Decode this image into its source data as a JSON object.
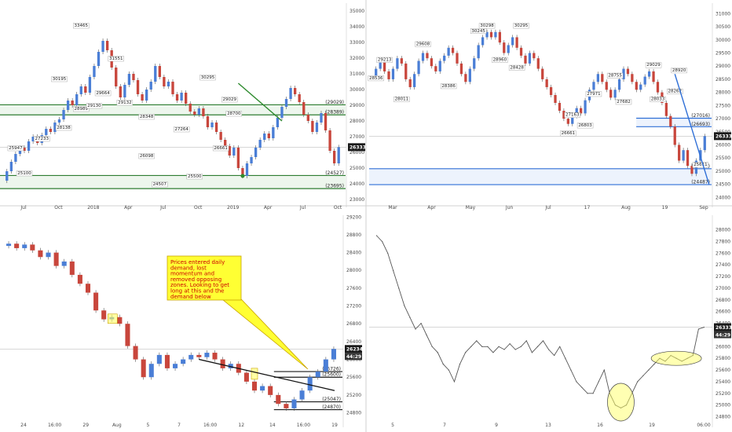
{
  "colors": {
    "up": "#4a7ed6",
    "down": "#c8463c",
    "zone_blue": "#2f6fd6",
    "zone_green": "#2e7d32",
    "trend_blue": "#2f6fd6",
    "trend_green": "#2e8b2e",
    "note_fill": "#ffff33",
    "note_border": "#c9a400",
    "circle_fill": "#ffff66",
    "badge_bg": "#1a1a1a"
  },
  "chart_data": [
    {
      "id": "weekly",
      "type": "candlestick",
      "ylim": [
        22800,
        35500
      ],
      "yticks": [
        "35000",
        "34000",
        "33000",
        "32000",
        "31000",
        "30000",
        "29000",
        "28000",
        "27000",
        "26000",
        "25000",
        "24000",
        "23000"
      ],
      "xticks": [
        "Jul",
        "Oct",
        "2018",
        "Apr",
        "Jul",
        "Oct",
        "2019",
        "Apr",
        "Jul",
        "Oct"
      ],
      "current_price": "26333",
      "candles": [
        [
          24200,
          24800
        ],
        [
          24800,
          25400
        ],
        [
          25400,
          25900
        ],
        [
          25900,
          26300
        ],
        [
          26300,
          26100
        ],
        [
          26100,
          26700
        ],
        [
          26700,
          27000
        ],
        [
          27000,
          26600
        ],
        [
          26600,
          27100
        ],
        [
          27100,
          27500
        ],
        [
          27500,
          27300
        ],
        [
          27300,
          27900
        ],
        [
          27900,
          28100
        ],
        [
          28100,
          28700
        ],
        [
          28700,
          29300
        ],
        [
          29300,
          29000
        ],
        [
          29000,
          29700
        ],
        [
          29700,
          30200
        ],
        [
          30200,
          29800
        ],
        [
          29800,
          30800
        ],
        [
          30800,
          31500
        ],
        [
          31500,
          32400
        ],
        [
          32400,
          33100
        ],
        [
          33100,
          32500
        ],
        [
          32500,
          31400
        ],
        [
          31400,
          30200
        ],
        [
          30200,
          29500
        ],
        [
          29500,
          30300
        ],
        [
          30300,
          31000
        ],
        [
          31000,
          30600
        ],
        [
          30600,
          29700
        ],
        [
          29700,
          29300
        ],
        [
          29300,
          30000
        ],
        [
          30000,
          30500
        ],
        [
          30500,
          31500
        ],
        [
          31500,
          30800
        ],
        [
          30800,
          30200
        ],
        [
          30200,
          30500
        ],
        [
          30500,
          29700
        ],
        [
          29700,
          29300
        ],
        [
          29300,
          29800
        ],
        [
          29800,
          29100
        ],
        [
          29100,
          28600
        ],
        [
          28600,
          28400
        ],
        [
          28400,
          28800
        ],
        [
          28800,
          28300
        ],
        [
          28300,
          27600
        ],
        [
          27600,
          27900
        ],
        [
          27900,
          27300
        ],
        [
          27300,
          26800
        ],
        [
          26800,
          26400
        ],
        [
          26400,
          25800
        ],
        [
          25800,
          26300
        ],
        [
          26300,
          25000
        ],
        [
          25000,
          24500
        ],
        [
          24500,
          25300
        ],
        [
          25300,
          25700
        ],
        [
          25700,
          26300
        ],
        [
          26300,
          26800
        ],
        [
          26800,
          27200
        ],
        [
          27200,
          26900
        ],
        [
          26900,
          27600
        ],
        [
          27600,
          28200
        ],
        [
          28200,
          28900
        ],
        [
          28900,
          29400
        ],
        [
          29400,
          30100
        ],
        [
          30100,
          29700
        ],
        [
          29700,
          29200
        ],
        [
          29200,
          28400
        ],
        [
          28400,
          28000
        ],
        [
          28000,
          27300
        ],
        [
          27300,
          27900
        ],
        [
          27900,
          28500
        ],
        [
          28500,
          27400
        ],
        [
          27400,
          26100
        ],
        [
          26100,
          25300
        ],
        [
          25300,
          26333
        ]
      ],
      "labels": [
        {
          "text": "33465",
          "x": 17,
          "p": 34000
        },
        {
          "text": "31551",
          "x": 25,
          "p": 31900
        },
        {
          "text": "30195",
          "x": 12,
          "p": 30600
        },
        {
          "text": "29664",
          "x": 22,
          "p": 29700
        },
        {
          "text": "29132",
          "x": 27,
          "p": 29100
        },
        {
          "text": "28989",
          "x": 17,
          "p": 28700
        },
        {
          "text": "29130",
          "x": 20,
          "p": 28900
        },
        {
          "text": "28348",
          "x": 32,
          "p": 28200
        },
        {
          "text": "28138",
          "x": 13,
          "p": 27500
        },
        {
          "text": "27264",
          "x": 40,
          "p": 27400
        },
        {
          "text": "27233",
          "x": 8,
          "p": 26800
        },
        {
          "text": "25947",
          "x": 2,
          "p": 26200
        },
        {
          "text": "26098",
          "x": 32,
          "p": 25700
        },
        {
          "text": "25100",
          "x": 4,
          "p": 24600
        },
        {
          "text": "25500",
          "x": 43,
          "p": 24400
        },
        {
          "text": "24507",
          "x": 35,
          "p": 23900
        },
        {
          "text": "30295",
          "x": 46,
          "p": 30700
        },
        {
          "text": "29029",
          "x": 51,
          "p": 29300
        },
        {
          "text": "28700",
          "x": 52,
          "p": 28400
        },
        {
          "text": "26661",
          "x": 49,
          "p": 26200
        }
      ],
      "zones": [
        {
          "text": "(29029)",
          "top": 29029,
          "bottom": 28389,
          "color": "zone_green"
        },
        {
          "text": "(24527)",
          "top": 24527,
          "bottom": 23695,
          "color": "zone_green"
        }
      ],
      "zone_labels": [
        "(28389)",
        "(23695)"
      ]
    },
    {
      "id": "daily",
      "type": "candlestick",
      "ylim": [
        23800,
        31400
      ],
      "yticks": [
        "31000",
        "30500",
        "30000",
        "29500",
        "29000",
        "28500",
        "28000",
        "27500",
        "27000",
        "26500",
        "26000",
        "25500",
        "25000",
        "24500",
        "24000"
      ],
      "xticks": [
        "Mar",
        "Apr",
        "May",
        "Jun",
        "Jul",
        "17",
        "Aug",
        "19",
        "Sep"
      ],
      "current_price": "26333",
      "candles": [
        [
          28600,
          28900
        ],
        [
          28900,
          29200
        ],
        [
          29200,
          28800
        ],
        [
          28800,
          28500
        ],
        [
          28500,
          28900
        ],
        [
          28900,
          29300
        ],
        [
          29300,
          29100
        ],
        [
          29100,
          28500
        ],
        [
          28500,
          28200
        ],
        [
          28200,
          28700
        ],
        [
          28700,
          29200
        ],
        [
          29200,
          29500
        ],
        [
          29500,
          29300
        ],
        [
          29300,
          29000
        ],
        [
          29000,
          28800
        ],
        [
          28800,
          29200
        ],
        [
          29200,
          29400
        ],
        [
          29400,
          29700
        ],
        [
          29700,
          29500
        ],
        [
          29500,
          29100
        ],
        [
          29100,
          28700
        ],
        [
          28700,
          28400
        ],
        [
          28400,
          28900
        ],
        [
          28900,
          29300
        ],
        [
          29300,
          29800
        ],
        [
          29800,
          30100
        ],
        [
          30100,
          30300
        ],
        [
          30300,
          30100
        ],
        [
          30100,
          30300
        ],
        [
          30300,
          29900
        ],
        [
          29900,
          29500
        ],
        [
          29500,
          29800
        ],
        [
          29800,
          30100
        ],
        [
          30100,
          29700
        ],
        [
          29700,
          29400
        ],
        [
          29400,
          29100
        ],
        [
          29100,
          29500
        ],
        [
          29500,
          29300
        ],
        [
          29300,
          28900
        ],
        [
          28900,
          28500
        ],
        [
          28500,
          28200
        ],
        [
          28200,
          27900
        ],
        [
          27900,
          27600
        ],
        [
          27600,
          27300
        ],
        [
          27300,
          27000
        ],
        [
          27000,
          26800
        ],
        [
          26800,
          27100
        ],
        [
          27100,
          27400
        ],
        [
          27400,
          27200
        ],
        [
          27200,
          27700
        ],
        [
          27700,
          28100
        ],
        [
          28100,
          28400
        ],
        [
          28400,
          28700
        ],
        [
          28700,
          28400
        ],
        [
          28400,
          28100
        ],
        [
          28100,
          27800
        ],
        [
          27800,
          28100
        ],
        [
          28100,
          28500
        ],
        [
          28500,
          28900
        ],
        [
          28900,
          28700
        ],
        [
          28700,
          28400
        ],
        [
          28400,
          28100
        ],
        [
          28100,
          28300
        ],
        [
          28300,
          28600
        ],
        [
          28600,
          28800
        ],
        [
          28800,
          28400
        ],
        [
          28400,
          28000
        ],
        [
          28000,
          27600
        ],
        [
          27600,
          27100
        ],
        [
          27100,
          26700
        ],
        [
          26700,
          26000
        ],
        [
          26000,
          25400
        ],
        [
          25400,
          25800
        ],
        [
          25800,
          25200
        ],
        [
          25200,
          24900
        ],
        [
          24900,
          25400
        ],
        [
          25400,
          25800
        ],
        [
          25800,
          26333
        ]
      ],
      "labels": [
        {
          "text": "30298",
          "x": 26,
          "p": 30500
        },
        {
          "text": "30295",
          "x": 34,
          "p": 30500
        },
        {
          "text": "30245",
          "x": 24,
          "p": 30300
        },
        {
          "text": "29608",
          "x": 11,
          "p": 29800
        },
        {
          "text": "29213",
          "x": 2,
          "p": 29200
        },
        {
          "text": "28960",
          "x": 29,
          "p": 29200
        },
        {
          "text": "28428",
          "x": 33,
          "p": 28900
        },
        {
          "text": "29029",
          "x": 65,
          "p": 29000
        },
        {
          "text": "28920",
          "x": 71,
          "p": 28800
        },
        {
          "text": "28755",
          "x": 56,
          "p": 28600
        },
        {
          "text": "28536",
          "x": 0,
          "p": 28500
        },
        {
          "text": "28386",
          "x": 17,
          "p": 28200
        },
        {
          "text": "27971",
          "x": 51,
          "p": 27900
        },
        {
          "text": "28011",
          "x": 6,
          "p": 27700
        },
        {
          "text": "27682",
          "x": 58,
          "p": 27600
        },
        {
          "text": "28262",
          "x": 70,
          "p": 28000
        },
        {
          "text": "28033",
          "x": 66,
          "p": 27700
        },
        {
          "text": "27163",
          "x": 46,
          "p": 27100
        },
        {
          "text": "26803",
          "x": 49,
          "p": 26700
        },
        {
          "text": "26661",
          "x": 45,
          "p": 26400
        },
        {
          "text": "25611",
          "x": 76,
          "p": 25200
        }
      ],
      "zones": [
        {
          "text": "(27016)",
          "top": 27016,
          "bottom": 26693,
          "color": "zone_blue"
        },
        {
          "text": "(25092)",
          "top": 25092,
          "bottom": 24487,
          "color": "zone_blue"
        }
      ],
      "zone_labels": [
        "(26693)",
        "(24487)"
      ]
    },
    {
      "id": "h4",
      "type": "candlestick",
      "ylim": [
        24580,
        29240
      ],
      "yticks": [
        "29200",
        "28800",
        "28400",
        "28000",
        "27600",
        "27200",
        "26800",
        "26400",
        "26000",
        "25600",
        "25200",
        "24800"
      ],
      "xticks": [
        "24",
        "16:00",
        "29",
        "Aug",
        "5",
        "7",
        "16:00",
        "12",
        "14",
        "16:00",
        "19"
      ],
      "current_price": "26234",
      "price_badge_extra": "44:29",
      "candles": [
        [
          28550,
          28600
        ],
        [
          28600,
          28500
        ],
        [
          28500,
          28580
        ],
        [
          28580,
          28450
        ],
        [
          28450,
          28300
        ],
        [
          28300,
          28400
        ],
        [
          28400,
          28100
        ],
        [
          28100,
          28200
        ],
        [
          28200,
          27900
        ],
        [
          27900,
          27700
        ],
        [
          27700,
          27500
        ],
        [
          27500,
          27100
        ],
        [
          27100,
          26900
        ],
        [
          26900,
          26950
        ],
        [
          26950,
          26800
        ],
        [
          26800,
          26300
        ],
        [
          26300,
          26000
        ],
        [
          26000,
          25600
        ],
        [
          25600,
          25900
        ],
        [
          25900,
          26100
        ],
        [
          26100,
          25800
        ],
        [
          25800,
          25900
        ],
        [
          25900,
          26000
        ],
        [
          26000,
          26100
        ],
        [
          26100,
          26050
        ],
        [
          26050,
          26150
        ],
        [
          26150,
          26000
        ],
        [
          26000,
          25800
        ],
        [
          25800,
          25900
        ],
        [
          25900,
          25700
        ],
        [
          25700,
          25500
        ],
        [
          25500,
          25300
        ],
        [
          25300,
          25400
        ],
        [
          25400,
          25200
        ],
        [
          25200,
          25000
        ],
        [
          25000,
          24900
        ],
        [
          24900,
          25100
        ],
        [
          25100,
          25300
        ],
        [
          25300,
          25600
        ],
        [
          25600,
          25726
        ],
        [
          25726,
          26000
        ],
        [
          26000,
          26234
        ]
      ],
      "zones": [
        {
          "text": "(25726)",
          "top": 25726,
          "bottom": 25600,
          "color": "badge_bg"
        },
        {
          "text": "(25047)",
          "top": 25047,
          "bottom": 24870,
          "color": "badge_bg"
        }
      ],
      "zone_labels": [
        "(25600)",
        "(24870)"
      ],
      "note": [
        "Prices entered daily",
        "demand, lost",
        "momentum and",
        "removed opposing",
        "zones. Looking to get",
        "long at this and the",
        "demand below"
      ]
    },
    {
      "id": "h1",
      "type": "line",
      "ylim": [
        24700,
        28250
      ],
      "yticks": [
        "28000",
        "27800",
        "27600",
        "27400",
        "27200",
        "27000",
        "26800",
        "26600",
        "26400",
        "26200",
        "26000",
        "25800",
        "25600",
        "25400",
        "25200",
        "25000",
        "24800"
      ],
      "xticks": [
        "5",
        "7",
        "9",
        "13",
        "16",
        "19",
        "06:00"
      ],
      "current_price": "26333",
      "price_badge_extra": "44:29",
      "values": [
        27900,
        27800,
        27600,
        27300,
        27000,
        26700,
        26500,
        26300,
        26400,
        26200,
        26000,
        25900,
        25700,
        25600,
        25400,
        25700,
        25900,
        26000,
        26100,
        26000,
        26000,
        25900,
        26000,
        25950,
        26050,
        25950,
        26000,
        26100,
        25900,
        26000,
        26100,
        25950,
        25850,
        26000,
        25800,
        25600,
        25400,
        25300,
        25200,
        25200,
        25400,
        25600,
        25200,
        25000,
        24950,
        25000,
        25200,
        25400,
        25500,
        25600,
        25700,
        25800,
        25750,
        25850,
        25800,
        25750,
        25800,
        25850,
        26300,
        26333
      ]
    }
  ]
}
